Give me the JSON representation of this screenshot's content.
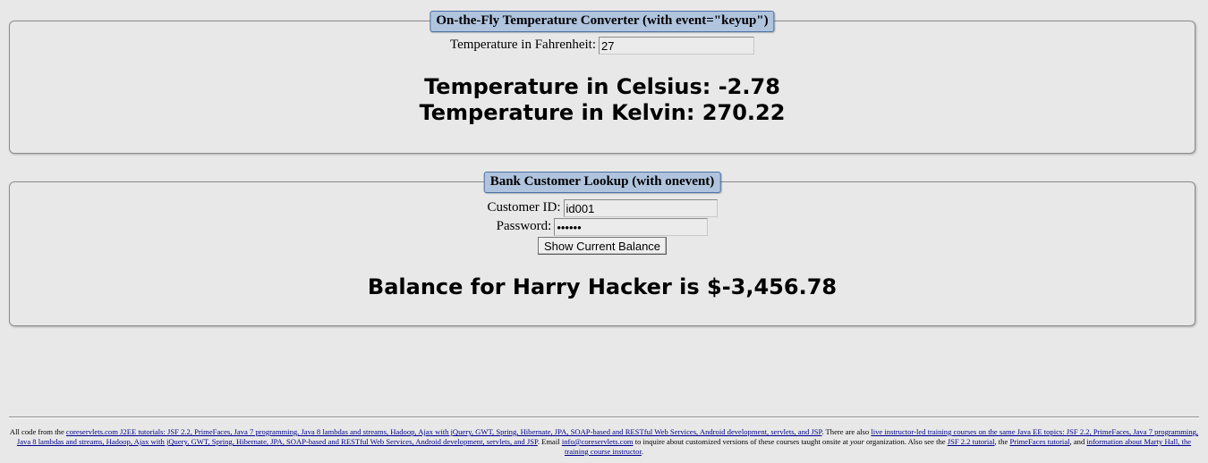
{
  "temp_converter": {
    "legend": "On-the-Fly Temperature Converter (with event=\"keyup\")",
    "fahrenheit_label": "Temperature in Fahrenheit:",
    "fahrenheit_value": "27",
    "celsius_text": "Temperature in Celsius: -2.78",
    "kelvin_text": "Temperature in Kelvin: 270.22"
  },
  "bank_lookup": {
    "legend": "Bank Customer Lookup (with onevent)",
    "customer_id_label": "Customer ID:",
    "customer_id_value": "id001",
    "password_label": "Password:",
    "password_value": "secret",
    "button_label": "Show Current Balance",
    "result_text": "Balance for Harry Hacker is $-3,456.78"
  },
  "footer": {
    "t1": "All code from the ",
    "l1": "coreservlets.com J2EE tutorials: JSF 2.2, PrimeFaces, Java 7 programming, Java 8 lambdas and streams, Hadoop, Ajax with jQuery, GWT, Spring, Hibernate, JPA, SOAP-based and RESTful Web Services, Android development, servlets, and JSP",
    "t2": ". There are also ",
    "l2": "live instructor-led training courses on the same Java EE topics: JSF 2.2, PrimeFaces, Java 7 programming, Java 8 lambdas and streams, Hadoop, Ajax with jQuery, GWT, Spring, Hibernate, JPA, SOAP-based and RESTful Web Services, Android development, servlets, and JSP",
    "t3": ". Email ",
    "l3": "info@coreservlets.com",
    "t4": " to inquire about customized versions of these courses taught onsite at ",
    "t4_em": "your",
    "t5": " organization. Also see the ",
    "l4": "JSF 2.2 tutorial",
    "t6": ", the ",
    "l5": "PrimeFaces tutorial",
    "t7": ", and ",
    "l6": "information about Marty Hall, the training course instructor",
    "t8": "."
  }
}
